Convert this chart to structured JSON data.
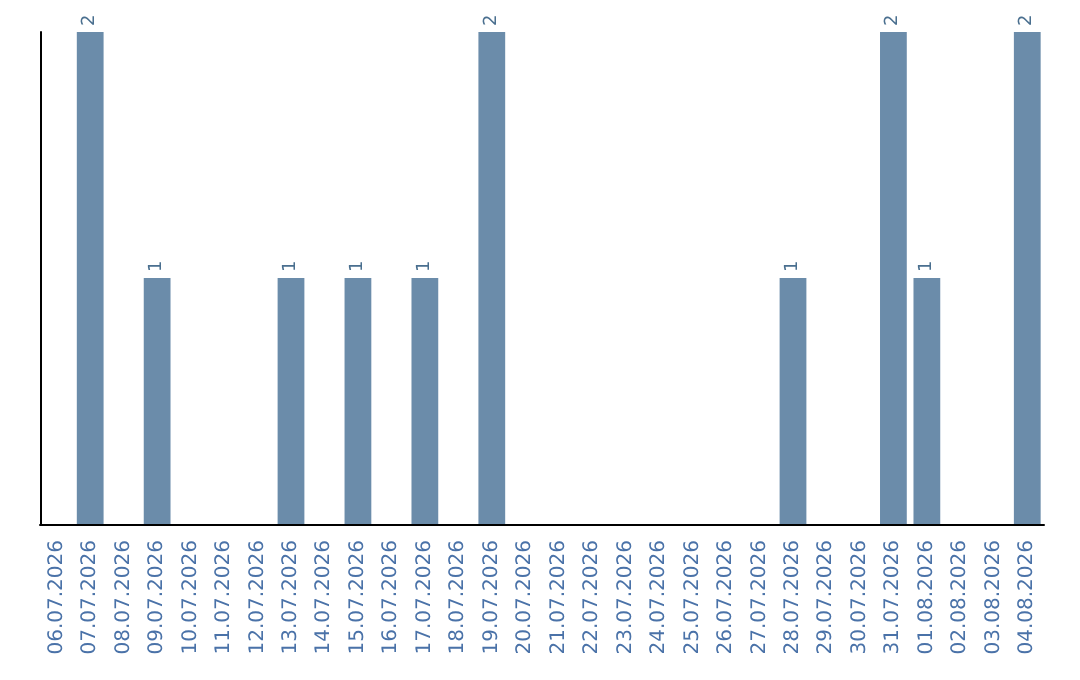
{
  "chart_data": {
    "type": "bar",
    "categories": [
      "06.07.2026",
      "07.07.2026",
      "08.07.2026",
      "09.07.2026",
      "10.07.2026",
      "11.07.2026",
      "12.07.2026",
      "13.07.2026",
      "14.07.2026",
      "15.07.2026",
      "16.07.2026",
      "17.07.2026",
      "18.07.2026",
      "19.07.2026",
      "20.07.2026",
      "21.07.2026",
      "22.07.2026",
      "23.07.2026",
      "24.07.2026",
      "25.07.2026",
      "26.07.2026",
      "27.07.2026",
      "28.07.2026",
      "29.07.2026",
      "30.07.2026",
      "31.07.2026",
      "01.08.2026",
      "02.08.2026",
      "03.08.2026",
      "04.08.2026"
    ],
    "values": [
      0,
      2,
      0,
      1,
      0,
      0,
      0,
      1,
      0,
      1,
      0,
      1,
      0,
      2,
      0,
      0,
      0,
      0,
      0,
      0,
      0,
      0,
      1,
      0,
      0,
      2,
      1,
      0,
      0,
      2
    ],
    "value_labels": [
      null,
      "2",
      null,
      "1",
      null,
      null,
      null,
      "1",
      null,
      "1",
      null,
      "1",
      null,
      "2",
      null,
      null,
      null,
      null,
      null,
      null,
      null,
      null,
      "1",
      null,
      null,
      "2",
      "1",
      null,
      null,
      "2"
    ],
    "color": "#6b8caa",
    "tick_labels": "x",
    "grid": false
  }
}
